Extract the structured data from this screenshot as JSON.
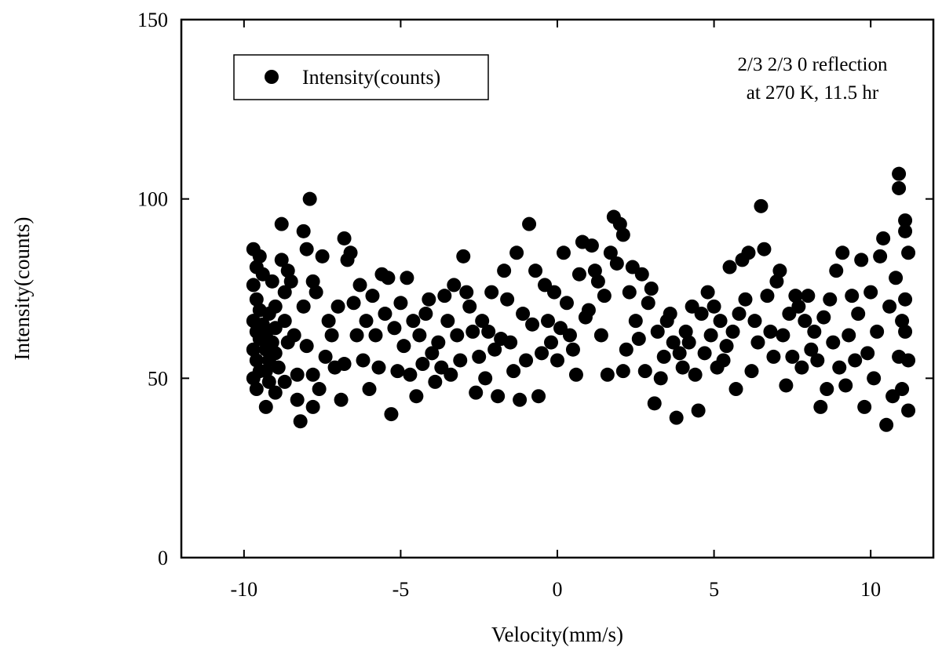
{
  "chart_data": {
    "type": "scatter",
    "xlabel": "Velocity(mm/s)",
    "ylabel": "Intensity(counts)",
    "xlim": [
      -12,
      12
    ],
    "ylim": [
      0,
      150
    ],
    "x_ticks": [
      -10,
      -5,
      0,
      5,
      10
    ],
    "y_ticks": [
      0,
      50,
      100,
      150
    ],
    "x_tick_labels": [
      "-10",
      "-5",
      "0",
      "5",
      "10"
    ],
    "y_tick_labels": [
      "0",
      "50",
      "100",
      "150"
    ],
    "grid": false,
    "legend": {
      "position": "top-left",
      "entries": [
        "Intensity(counts)"
      ]
    },
    "annotation": [
      "2/3 2/3 0 reflection",
      "at 270 K, 11.5 hr"
    ],
    "marker_color": "#000000",
    "series": [
      {
        "name": "Intensity(counts)",
        "points": [
          [
            -9.7,
            86
          ],
          [
            -9.6,
            81
          ],
          [
            -9.5,
            84
          ],
          [
            -9.4,
            79
          ],
          [
            -9.7,
            76
          ],
          [
            -9.6,
            72
          ],
          [
            -9.5,
            69
          ],
          [
            -9.7,
            66
          ],
          [
            -9.6,
            63
          ],
          [
            -9.5,
            61
          ],
          [
            -9.7,
            58
          ],
          [
            -9.6,
            55
          ],
          [
            -9.5,
            52
          ],
          [
            -9.7,
            50
          ],
          [
            -9.6,
            47
          ],
          [
            -9.4,
            65
          ],
          [
            -9.3,
            62
          ],
          [
            -9.2,
            68
          ],
          [
            -9.3,
            58
          ],
          [
            -9.2,
            55
          ],
          [
            -9.3,
            52
          ],
          [
            -9.2,
            49
          ],
          [
            -9.3,
            42
          ],
          [
            -9.1,
            77
          ],
          [
            -9.0,
            70
          ],
          [
            -9.0,
            64
          ],
          [
            -9.1,
            60
          ],
          [
            -9.0,
            57
          ],
          [
            -8.9,
            53
          ],
          [
            -9.0,
            46
          ],
          [
            -8.8,
            93
          ],
          [
            -8.8,
            83
          ],
          [
            -8.7,
            74
          ],
          [
            -8.6,
            80
          ],
          [
            -8.7,
            66
          ],
          [
            -8.6,
            60
          ],
          [
            -8.7,
            49
          ],
          [
            -8.5,
            77
          ],
          [
            -8.4,
            62
          ],
          [
            -8.3,
            51
          ],
          [
            -8.3,
            44
          ],
          [
            -8.2,
            38
          ],
          [
            -8.1,
            91
          ],
          [
            -8.1,
            70
          ],
          [
            -8.0,
            86
          ],
          [
            -8.0,
            59
          ],
          [
            -7.9,
            100
          ],
          [
            -7.8,
            77
          ],
          [
            -7.7,
            74
          ],
          [
            -7.8,
            51
          ],
          [
            -7.8,
            42
          ],
          [
            -7.6,
            47
          ],
          [
            -7.5,
            84
          ],
          [
            -7.4,
            56
          ],
          [
            -7.3,
            66
          ],
          [
            -7.2,
            62
          ],
          [
            -7.1,
            53
          ],
          [
            -7.0,
            70
          ],
          [
            -6.9,
            44
          ],
          [
            -6.8,
            89
          ],
          [
            -6.8,
            54
          ],
          [
            -6.7,
            83
          ],
          [
            -6.6,
            85
          ],
          [
            -6.5,
            71
          ],
          [
            -6.4,
            62
          ],
          [
            -6.3,
            76
          ],
          [
            -6.2,
            55
          ],
          [
            -6.1,
            66
          ],
          [
            -6.0,
            47
          ],
          [
            -5.9,
            73
          ],
          [
            -5.8,
            62
          ],
          [
            -5.7,
            53
          ],
          [
            -5.6,
            79
          ],
          [
            -5.5,
            68
          ],
          [
            -5.4,
            78
          ],
          [
            -5.3,
            40
          ],
          [
            -5.2,
            64
          ],
          [
            -5.1,
            52
          ],
          [
            -5.0,
            71
          ],
          [
            -4.9,
            59
          ],
          [
            -4.8,
            78
          ],
          [
            -4.7,
            51
          ],
          [
            -4.6,
            66
          ],
          [
            -4.5,
            45
          ],
          [
            -4.4,
            62
          ],
          [
            -4.3,
            54
          ],
          [
            -4.2,
            68
          ],
          [
            -4.1,
            72
          ],
          [
            -4.0,
            57
          ],
          [
            -3.9,
            49
          ],
          [
            -3.8,
            60
          ],
          [
            -3.7,
            53
          ],
          [
            -3.6,
            73
          ],
          [
            -3.5,
            66
          ],
          [
            -3.4,
            51
          ],
          [
            -3.3,
            76
          ],
          [
            -3.2,
            62
          ],
          [
            -3.1,
            55
          ],
          [
            -3.0,
            84
          ],
          [
            -2.9,
            74
          ],
          [
            -2.8,
            70
          ],
          [
            -2.7,
            63
          ],
          [
            -2.6,
            46
          ],
          [
            -2.5,
            56
          ],
          [
            -2.4,
            66
          ],
          [
            -2.3,
            50
          ],
          [
            -2.2,
            63
          ],
          [
            -2.1,
            74
          ],
          [
            -2.0,
            58
          ],
          [
            -1.9,
            45
          ],
          [
            -1.8,
            61
          ],
          [
            -1.7,
            80
          ],
          [
            -1.6,
            72
          ],
          [
            -1.5,
            60
          ],
          [
            -1.4,
            52
          ],
          [
            -1.3,
            85
          ],
          [
            -1.2,
            44
          ],
          [
            -1.1,
            68
          ],
          [
            -1.0,
            55
          ],
          [
            -0.9,
            93
          ],
          [
            -0.8,
            65
          ],
          [
            -0.7,
            80
          ],
          [
            -0.6,
            45
          ],
          [
            -0.5,
            57
          ],
          [
            -0.4,
            76
          ],
          [
            -0.3,
            66
          ],
          [
            -0.2,
            60
          ],
          [
            -0.1,
            74
          ],
          [
            0.0,
            55
          ],
          [
            0.1,
            64
          ],
          [
            0.2,
            85
          ],
          [
            0.3,
            71
          ],
          [
            0.4,
            62
          ],
          [
            0.5,
            58
          ],
          [
            0.6,
            51
          ],
          [
            0.7,
            79
          ],
          [
            0.8,
            88
          ],
          [
            0.9,
            67
          ],
          [
            1.0,
            69
          ],
          [
            1.1,
            87
          ],
          [
            1.2,
            80
          ],
          [
            1.3,
            77
          ],
          [
            1.4,
            62
          ],
          [
            1.5,
            73
          ],
          [
            1.6,
            51
          ],
          [
            1.7,
            85
          ],
          [
            1.8,
            95
          ],
          [
            1.9,
            82
          ],
          [
            2.0,
            93
          ],
          [
            2.1,
            90
          ],
          [
            2.1,
            52
          ],
          [
            2.2,
            58
          ],
          [
            2.3,
            74
          ],
          [
            2.4,
            81
          ],
          [
            2.5,
            66
          ],
          [
            2.6,
            61
          ],
          [
            2.7,
            79
          ],
          [
            2.8,
            52
          ],
          [
            2.9,
            71
          ],
          [
            3.0,
            75
          ],
          [
            3.1,
            43
          ],
          [
            3.2,
            63
          ],
          [
            3.3,
            50
          ],
          [
            3.4,
            56
          ],
          [
            3.5,
            66
          ],
          [
            3.6,
            68
          ],
          [
            3.7,
            60
          ],
          [
            3.8,
            39
          ],
          [
            3.9,
            57
          ],
          [
            4.0,
            53
          ],
          [
            4.1,
            63
          ],
          [
            4.2,
            60
          ],
          [
            4.3,
            70
          ],
          [
            4.4,
            51
          ],
          [
            4.5,
            41
          ],
          [
            4.6,
            68
          ],
          [
            4.7,
            57
          ],
          [
            4.8,
            74
          ],
          [
            4.9,
            62
          ],
          [
            5.0,
            70
          ],
          [
            5.1,
            53
          ],
          [
            5.2,
            66
          ],
          [
            5.3,
            55
          ],
          [
            5.4,
            59
          ],
          [
            5.5,
            81
          ],
          [
            5.6,
            63
          ],
          [
            5.7,
            47
          ],
          [
            5.8,
            68
          ],
          [
            5.9,
            83
          ],
          [
            6.0,
            72
          ],
          [
            6.1,
            85
          ],
          [
            6.2,
            52
          ],
          [
            6.3,
            66
          ],
          [
            6.4,
            60
          ],
          [
            6.5,
            98
          ],
          [
            6.6,
            86
          ],
          [
            6.7,
            73
          ],
          [
            6.8,
            63
          ],
          [
            6.9,
            56
          ],
          [
            7.0,
            77
          ],
          [
            7.1,
            80
          ],
          [
            7.2,
            62
          ],
          [
            7.3,
            48
          ],
          [
            7.4,
            68
          ],
          [
            7.5,
            56
          ],
          [
            7.6,
            73
          ],
          [
            7.7,
            70
          ],
          [
            7.8,
            53
          ],
          [
            7.9,
            66
          ],
          [
            8.0,
            73
          ],
          [
            8.1,
            58
          ],
          [
            8.2,
            63
          ],
          [
            8.3,
            55
          ],
          [
            8.4,
            42
          ],
          [
            8.5,
            67
          ],
          [
            8.6,
            47
          ],
          [
            8.7,
            72
          ],
          [
            8.8,
            60
          ],
          [
            8.9,
            80
          ],
          [
            9.0,
            53
          ],
          [
            9.1,
            85
          ],
          [
            9.2,
            48
          ],
          [
            9.3,
            62
          ],
          [
            9.4,
            73
          ],
          [
            9.5,
            55
          ],
          [
            9.6,
            68
          ],
          [
            9.7,
            83
          ],
          [
            9.8,
            42
          ],
          [
            9.9,
            57
          ],
          [
            10.0,
            74
          ],
          [
            10.1,
            50
          ],
          [
            10.2,
            63
          ],
          [
            10.3,
            84
          ],
          [
            10.4,
            89
          ],
          [
            10.5,
            37
          ],
          [
            10.6,
            70
          ],
          [
            10.7,
            45
          ],
          [
            10.8,
            78
          ],
          [
            10.9,
            107
          ],
          [
            10.9,
            103
          ],
          [
            10.9,
            56
          ],
          [
            11.0,
            66
          ],
          [
            11.0,
            47
          ],
          [
            11.1,
            94
          ],
          [
            11.1,
            91
          ],
          [
            11.1,
            72
          ],
          [
            11.1,
            63
          ],
          [
            11.2,
            85
          ],
          [
            11.2,
            55
          ],
          [
            11.2,
            41
          ]
        ]
      }
    ]
  }
}
